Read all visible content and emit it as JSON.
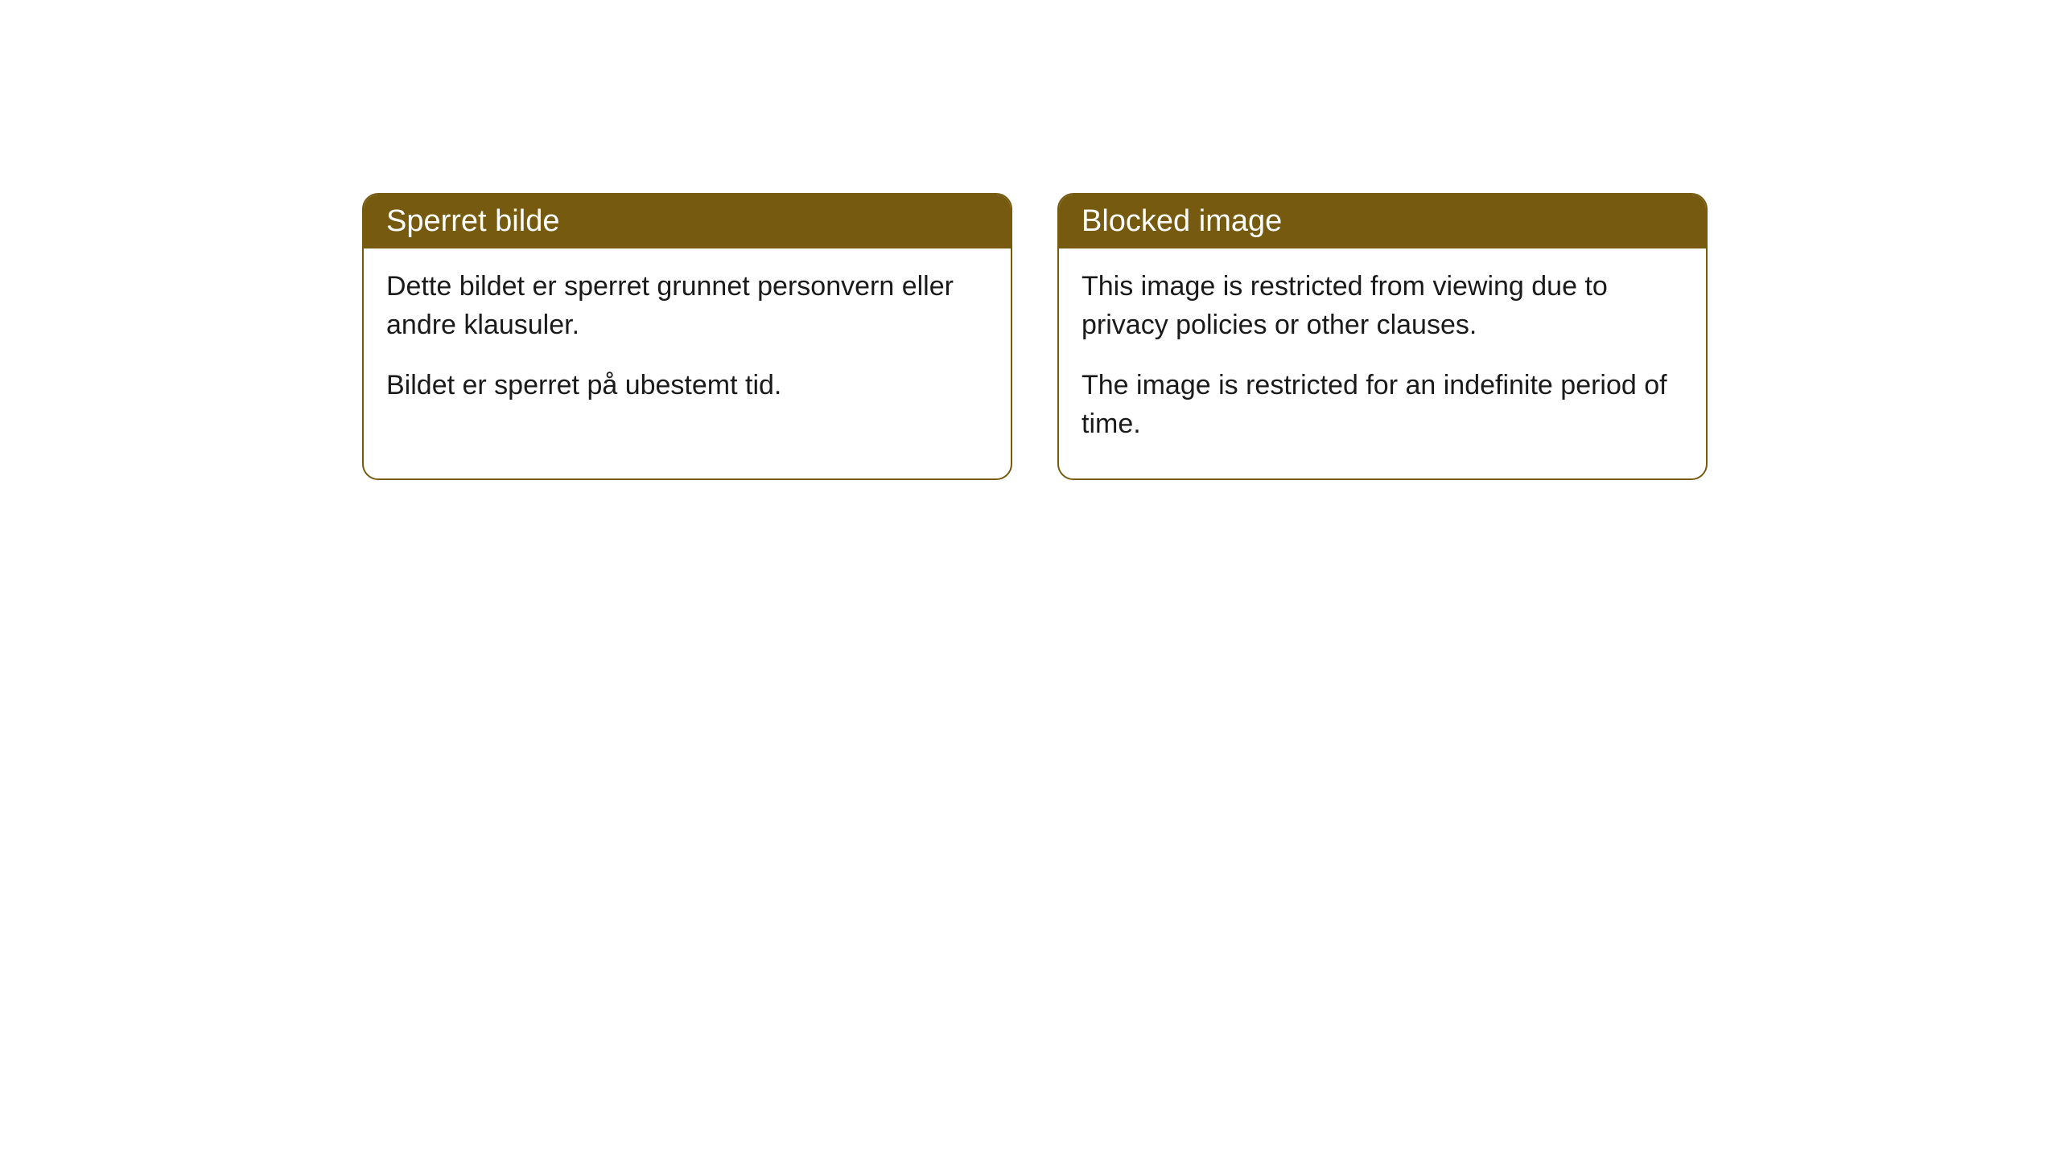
{
  "cards": [
    {
      "title": "Sperret bilde",
      "paragraph1": "Dette bildet er sperret grunnet personvern eller andre klausuler.",
      "paragraph2": "Bildet er sperret på ubestemt tid."
    },
    {
      "title": "Blocked image",
      "paragraph1": "This image is restricted from viewing due to privacy policies or other clauses.",
      "paragraph2": "The image is restricted for an indefinite period of time."
    }
  ],
  "styling": {
    "header_background": "#755a10",
    "header_text_color": "#ffffff",
    "border_color": "#755a10",
    "body_background": "#ffffff",
    "body_text_color": "#1a1a1a",
    "border_radius": 20,
    "title_fontsize": 38,
    "body_fontsize": 34
  }
}
